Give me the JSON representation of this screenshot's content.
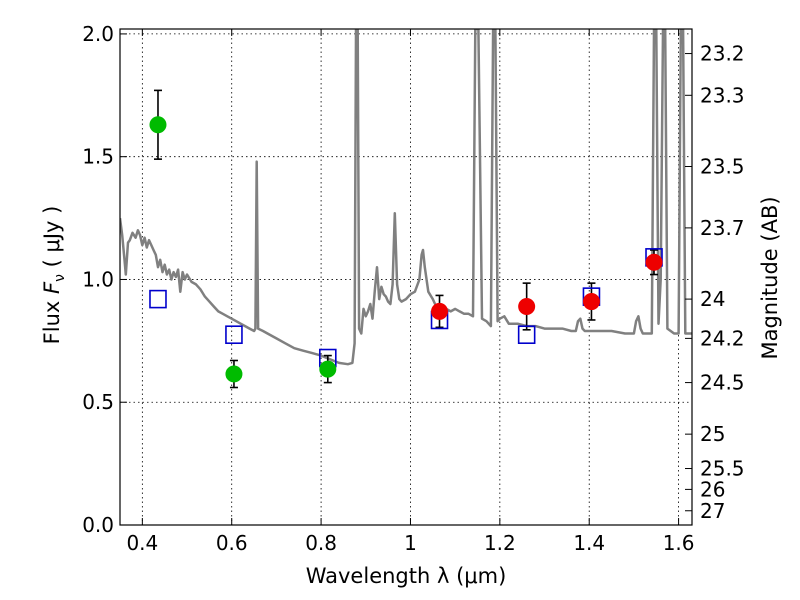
{
  "chart_data": {
    "type": "scatter",
    "title": "",
    "xlabel": "Wavelength  λ (μm)",
    "ylabel": "Flux  F_ν  ( μJy )",
    "ylabel_parts": {
      "prefix": "Flux  ",
      "symbol": "F",
      "subscript": "ν",
      "suffix": "  ( μJy )"
    },
    "y2label": "Magnitude (AB)",
    "xlim": [
      0.35,
      1.63
    ],
    "ylim": [
      0.0,
      2.02
    ],
    "grid": true,
    "x_ticks": [
      0.4,
      0.6,
      0.8,
      1.0,
      1.2,
      1.4,
      1.6
    ],
    "x_tick_labels": [
      "0.4",
      "0.6",
      "0.8",
      "1",
      "1.2",
      "1.4",
      "1.6"
    ],
    "y_ticks": [
      0.0,
      0.5,
      1.0,
      1.5,
      2.0
    ],
    "y_tick_labels": [
      "0.0",
      "0.5",
      "1.0",
      "1.5",
      "2.0"
    ],
    "mag_ticks": [
      {
        "label": "23.2",
        "flux": 1.92
      },
      {
        "label": "23.3",
        "flux": 1.75
      },
      {
        "label": "23.5",
        "flux": 1.46
      },
      {
        "label": "23.7",
        "flux": 1.21
      },
      {
        "label": "24",
        "flux": 0.92
      },
      {
        "label": "24.2",
        "flux": 0.76
      },
      {
        "label": "24.5",
        "flux": 0.58
      },
      {
        "label": "25",
        "flux": 0.37
      },
      {
        "label": "25.5",
        "flux": 0.23
      },
      {
        "label": "26",
        "flux": 0.145
      },
      {
        "label": "27",
        "flux": 0.058
      }
    ],
    "colors": {
      "green": "#00bb00",
      "red": "#ee0000",
      "blue_square": "#0000cc",
      "spectrum": "#808080",
      "errorbar": "#000000",
      "grid": "#000000"
    },
    "series": [
      {
        "name": "green points",
        "marker": "circle",
        "points": [
          {
            "x": 0.435,
            "y": 1.63,
            "err": 0.14
          },
          {
            "x": 0.605,
            "y": 0.615,
            "err": 0.055
          },
          {
            "x": 0.815,
            "y": 0.635,
            "err": 0.055
          }
        ]
      },
      {
        "name": "red points",
        "marker": "circle",
        "points": [
          {
            "x": 1.065,
            "y": 0.87,
            "err": 0.065
          },
          {
            "x": 1.26,
            "y": 0.89,
            "err": 0.095
          },
          {
            "x": 1.405,
            "y": 0.91,
            "err": 0.075
          },
          {
            "x": 1.545,
            "y": 1.07,
            "err": 0.05
          }
        ]
      },
      {
        "name": "model squares",
        "marker": "open-square",
        "points": [
          {
            "x": 0.435,
            "y": 0.92
          },
          {
            "x": 0.605,
            "y": 0.775
          },
          {
            "x": 0.815,
            "y": 0.68
          },
          {
            "x": 1.065,
            "y": 0.835
          },
          {
            "x": 1.26,
            "y": 0.775
          },
          {
            "x": 1.405,
            "y": 0.93
          },
          {
            "x": 1.545,
            "y": 1.09
          }
        ]
      },
      {
        "name": "model spectrum",
        "marker": "line",
        "points": [
          [
            0.35,
            1.25
          ],
          [
            0.355,
            1.18
          ],
          [
            0.36,
            1.08
          ],
          [
            0.363,
            1.02
          ],
          [
            0.368,
            1.15
          ],
          [
            0.372,
            1.16
          ],
          [
            0.378,
            1.19
          ],
          [
            0.385,
            1.17
          ],
          [
            0.39,
            1.2
          ],
          [
            0.395,
            1.18
          ],
          [
            0.4,
            1.14
          ],
          [
            0.405,
            1.17
          ],
          [
            0.41,
            1.13
          ],
          [
            0.415,
            1.16
          ],
          [
            0.42,
            1.14
          ],
          [
            0.425,
            1.12
          ],
          [
            0.43,
            1.1
          ],
          [
            0.435,
            1.05
          ],
          [
            0.44,
            1.08
          ],
          [
            0.445,
            1.03
          ],
          [
            0.45,
            1.06
          ],
          [
            0.455,
            1.02
          ],
          [
            0.46,
            1.04
          ],
          [
            0.465,
            1.0
          ],
          [
            0.47,
            1.03
          ],
          [
            0.475,
            1.01
          ],
          [
            0.48,
            1.04
          ],
          [
            0.485,
            0.95
          ],
          [
            0.49,
            1.03
          ],
          [
            0.495,
            1.0
          ],
          [
            0.5,
            1.02
          ],
          [
            0.51,
            0.99
          ],
          [
            0.52,
            0.98
          ],
          [
            0.53,
            0.96
          ],
          [
            0.54,
            0.93
          ],
          [
            0.55,
            0.91
          ],
          [
            0.56,
            0.89
          ],
          [
            0.57,
            0.87
          ],
          [
            0.58,
            0.86
          ],
          [
            0.59,
            0.85
          ],
          [
            0.6,
            0.84
          ],
          [
            0.61,
            0.83
          ],
          [
            0.62,
            0.82
          ],
          [
            0.63,
            0.81
          ],
          [
            0.64,
            0.8
          ],
          [
            0.65,
            0.79
          ],
          [
            0.653,
            0.8
          ],
          [
            0.656,
            1.48
          ],
          [
            0.659,
            0.8
          ],
          [
            0.67,
            0.79
          ],
          [
            0.68,
            0.78
          ],
          [
            0.7,
            0.76
          ],
          [
            0.72,
            0.74
          ],
          [
            0.74,
            0.72
          ],
          [
            0.76,
            0.71
          ],
          [
            0.78,
            0.7
          ],
          [
            0.8,
            0.69
          ],
          [
            0.82,
            0.675
          ],
          [
            0.84,
            0.66
          ],
          [
            0.86,
            0.655
          ],
          [
            0.87,
            0.66
          ],
          [
            0.875,
            0.74
          ],
          [
            0.878,
            2.02
          ],
          [
            0.882,
            2.02
          ],
          [
            0.885,
            0.8
          ],
          [
            0.89,
            0.78
          ],
          [
            0.895,
            0.88
          ],
          [
            0.9,
            0.85
          ],
          [
            0.905,
            0.87
          ],
          [
            0.91,
            0.9
          ],
          [
            0.915,
            0.84
          ],
          [
            0.92,
            0.95
          ],
          [
            0.925,
            1.05
          ],
          [
            0.93,
            0.92
          ],
          [
            0.935,
            0.97
          ],
          [
            0.94,
            0.94
          ],
          [
            0.945,
            0.93
          ],
          [
            0.95,
            0.91
          ],
          [
            0.955,
            0.9
          ],
          [
            0.96,
            0.98
          ],
          [
            0.965,
            1.27
          ],
          [
            0.97,
            0.98
          ],
          [
            0.975,
            0.92
          ],
          [
            0.98,
            0.91
          ],
          [
            0.99,
            0.92
          ],
          [
            1.0,
            0.94
          ],
          [
            1.01,
            0.95
          ],
          [
            1.02,
            1.0
          ],
          [
            1.025,
            1.1
          ],
          [
            1.028,
            1.12
          ],
          [
            1.032,
            1.05
          ],
          [
            1.04,
            0.95
          ],
          [
            1.05,
            0.92
          ],
          [
            1.06,
            0.88
          ],
          [
            1.07,
            0.86
          ],
          [
            1.08,
            0.88
          ],
          [
            1.09,
            0.87
          ],
          [
            1.1,
            0.88
          ],
          [
            1.11,
            0.87
          ],
          [
            1.12,
            0.86
          ],
          [
            1.13,
            0.86
          ],
          [
            1.14,
            0.85
          ],
          [
            1.145,
            2.02
          ],
          [
            1.152,
            2.02
          ],
          [
            1.16,
            0.84
          ],
          [
            1.17,
            0.83
          ],
          [
            1.18,
            0.81
          ],
          [
            1.185,
            2.02
          ],
          [
            1.19,
            2.02
          ],
          [
            1.195,
            0.83
          ],
          [
            1.2,
            0.84
          ],
          [
            1.21,
            0.85
          ],
          [
            1.22,
            0.82
          ],
          [
            1.24,
            0.82
          ],
          [
            1.26,
            0.81
          ],
          [
            1.28,
            0.81
          ],
          [
            1.3,
            0.8
          ],
          [
            1.32,
            0.8
          ],
          [
            1.34,
            0.8
          ],
          [
            1.36,
            0.79
          ],
          [
            1.37,
            0.79
          ],
          [
            1.375,
            0.83
          ],
          [
            1.38,
            0.84
          ],
          [
            1.385,
            0.8
          ],
          [
            1.39,
            0.79
          ],
          [
            1.42,
            0.79
          ],
          [
            1.45,
            0.79
          ],
          [
            1.48,
            0.78
          ],
          [
            1.5,
            0.78
          ],
          [
            1.505,
            0.83
          ],
          [
            1.51,
            0.85
          ],
          [
            1.515,
            0.8
          ],
          [
            1.52,
            0.78
          ],
          [
            1.53,
            0.78
          ],
          [
            1.54,
            0.78
          ],
          [
            1.545,
            2.02
          ],
          [
            1.55,
            2.02
          ],
          [
            1.555,
            0.82
          ],
          [
            1.56,
            1.0
          ],
          [
            1.565,
            2.02
          ],
          [
            1.57,
            2.02
          ],
          [
            1.575,
            0.8
          ],
          [
            1.59,
            0.78
          ],
          [
            1.6,
            0.78
          ],
          [
            1.605,
            2.02
          ],
          [
            1.61,
            2.02
          ],
          [
            1.615,
            0.78
          ],
          [
            1.63,
            0.78
          ]
        ]
      }
    ]
  }
}
